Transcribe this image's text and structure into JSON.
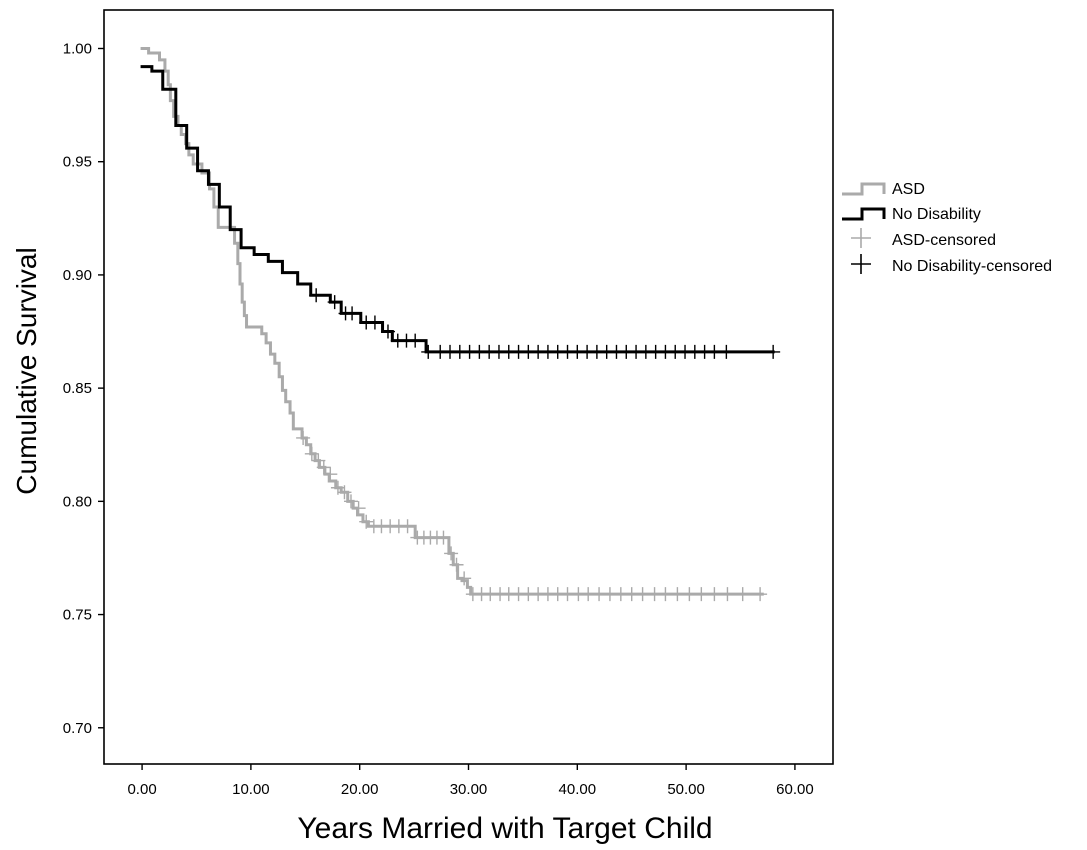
{
  "chart_data": {
    "type": "line",
    "subtype": "kaplan-meier step",
    "title": "",
    "xlabel": "Years Married with Target Child",
    "ylabel": "Cumulative Survival",
    "xlim": [
      -3.5,
      63.5
    ],
    "ylim": [
      0.684,
      1.017
    ],
    "x_ticks": [
      0,
      10,
      20,
      30,
      40,
      50,
      60
    ],
    "x_tick_labels": [
      "0.00",
      "10.00",
      "20.00",
      "30.00",
      "40.00",
      "50.00",
      "60.00"
    ],
    "y_ticks": [
      0.7,
      0.75,
      0.8,
      0.85,
      0.9,
      0.95,
      1.0
    ],
    "y_tick_labels": [
      "0.70",
      "0.75",
      "0.80",
      "0.85",
      "0.90",
      "0.95",
      "1.00"
    ],
    "grid": false,
    "legend_position": "right",
    "legend": [
      "ASD",
      "No Disability",
      "ASD-censored",
      "No Disability-censored"
    ],
    "colors": {
      "ASD": "#aaaaaa",
      "No Disability": "#000000"
    },
    "series": [
      {
        "name": "ASD",
        "steps": [
          [
            0,
            1.0
          ],
          [
            0.5,
            1.0
          ],
          [
            0.6,
            0.998
          ],
          [
            1.5,
            0.998
          ],
          [
            1.6,
            0.995
          ],
          [
            2.0,
            0.995
          ],
          [
            2.1,
            0.99
          ],
          [
            2.4,
            0.984
          ],
          [
            2.6,
            0.977
          ],
          [
            2.9,
            0.97
          ],
          [
            3.3,
            0.966
          ],
          [
            3.6,
            0.962
          ],
          [
            4.0,
            0.958
          ],
          [
            4.3,
            0.953
          ],
          [
            4.7,
            0.949
          ],
          [
            5.5,
            0.945
          ],
          [
            6.2,
            0.938
          ],
          [
            6.6,
            0.93
          ],
          [
            7.0,
            0.921
          ],
          [
            8.3,
            0.921
          ],
          [
            8.5,
            0.914
          ],
          [
            8.8,
            0.905
          ],
          [
            9.0,
            0.896
          ],
          [
            9.2,
            0.888
          ],
          [
            9.4,
            0.882
          ],
          [
            9.6,
            0.877
          ],
          [
            11.0,
            0.874
          ],
          [
            11.4,
            0.87
          ],
          [
            11.8,
            0.865
          ],
          [
            12.2,
            0.861
          ],
          [
            12.6,
            0.855
          ],
          [
            12.9,
            0.849
          ],
          [
            13.2,
            0.844
          ],
          [
            13.6,
            0.839
          ],
          [
            13.9,
            0.832
          ],
          [
            14.7,
            0.828
          ],
          [
            15.1,
            0.825
          ],
          [
            15.5,
            0.821
          ],
          [
            15.9,
            0.818
          ],
          [
            16.3,
            0.815
          ],
          [
            16.8,
            0.812
          ],
          [
            17.2,
            0.809
          ],
          [
            17.8,
            0.806
          ],
          [
            18.3,
            0.804
          ],
          [
            18.9,
            0.8
          ],
          [
            19.4,
            0.797
          ],
          [
            19.8,
            0.794
          ],
          [
            20.3,
            0.791
          ],
          [
            20.8,
            0.789
          ],
          [
            25.0,
            0.789
          ],
          [
            25.1,
            0.784
          ],
          [
            28.1,
            0.784
          ],
          [
            28.2,
            0.777
          ],
          [
            28.6,
            0.772
          ],
          [
            29.0,
            0.766
          ],
          [
            29.4,
            0.765
          ],
          [
            29.9,
            0.762
          ],
          [
            30.2,
            0.759
          ],
          [
            57.0,
            0.759
          ]
        ],
        "censored": [
          [
            14.8,
            0.828
          ],
          [
            15.6,
            0.821
          ],
          [
            16.2,
            0.818
          ],
          [
            16.7,
            0.815
          ],
          [
            17.3,
            0.812
          ],
          [
            18.0,
            0.806
          ],
          [
            18.6,
            0.804
          ],
          [
            19.2,
            0.8
          ],
          [
            19.9,
            0.797
          ],
          [
            20.6,
            0.791
          ],
          [
            21.3,
            0.789
          ],
          [
            22.0,
            0.789
          ],
          [
            22.8,
            0.789
          ],
          [
            23.6,
            0.789
          ],
          [
            24.4,
            0.789
          ],
          [
            25.3,
            0.784
          ],
          [
            25.9,
            0.784
          ],
          [
            26.5,
            0.784
          ],
          [
            27.1,
            0.784
          ],
          [
            27.7,
            0.784
          ],
          [
            28.4,
            0.777
          ],
          [
            28.9,
            0.772
          ],
          [
            29.6,
            0.766
          ],
          [
            30.4,
            0.759
          ],
          [
            31.2,
            0.759
          ],
          [
            32.0,
            0.759
          ],
          [
            32.9,
            0.759
          ],
          [
            33.7,
            0.759
          ],
          [
            34.6,
            0.759
          ],
          [
            35.5,
            0.759
          ],
          [
            36.4,
            0.759
          ],
          [
            37.3,
            0.759
          ],
          [
            38.2,
            0.759
          ],
          [
            39.1,
            0.759
          ],
          [
            40.1,
            0.759
          ],
          [
            41.0,
            0.759
          ],
          [
            42.0,
            0.759
          ],
          [
            43.0,
            0.759
          ],
          [
            44.0,
            0.759
          ],
          [
            45.0,
            0.759
          ],
          [
            46.0,
            0.759
          ],
          [
            47.1,
            0.759
          ],
          [
            48.1,
            0.759
          ],
          [
            49.2,
            0.759
          ],
          [
            50.3,
            0.759
          ],
          [
            51.4,
            0.759
          ],
          [
            52.6,
            0.759
          ],
          [
            53.8,
            0.759
          ],
          [
            55.2,
            0.759
          ],
          [
            56.8,
            0.759
          ]
        ]
      },
      {
        "name": "No Disability",
        "steps": [
          [
            0,
            0.992
          ],
          [
            0.8,
            0.992
          ],
          [
            0.9,
            0.99
          ],
          [
            1.8,
            0.99
          ],
          [
            1.9,
            0.982
          ],
          [
            3.0,
            0.982
          ],
          [
            3.1,
            0.966
          ],
          [
            4.0,
            0.966
          ],
          [
            4.1,
            0.956
          ],
          [
            5.0,
            0.956
          ],
          [
            5.1,
            0.946
          ],
          [
            6.0,
            0.946
          ],
          [
            6.1,
            0.94
          ],
          [
            7.0,
            0.94
          ],
          [
            7.1,
            0.93
          ],
          [
            8.0,
            0.93
          ],
          [
            8.1,
            0.92
          ],
          [
            9.0,
            0.92
          ],
          [
            9.1,
            0.912
          ],
          [
            10.2,
            0.912
          ],
          [
            10.3,
            0.909
          ],
          [
            11.5,
            0.909
          ],
          [
            11.6,
            0.906
          ],
          [
            12.8,
            0.906
          ],
          [
            12.9,
            0.901
          ],
          [
            14.2,
            0.901
          ],
          [
            14.3,
            0.896
          ],
          [
            15.4,
            0.896
          ],
          [
            15.5,
            0.891
          ],
          [
            17.2,
            0.891
          ],
          [
            17.3,
            0.888
          ],
          [
            18.2,
            0.888
          ],
          [
            18.3,
            0.883
          ],
          [
            20.0,
            0.883
          ],
          [
            20.1,
            0.879
          ],
          [
            22.0,
            0.879
          ],
          [
            22.1,
            0.875
          ],
          [
            22.9,
            0.875
          ],
          [
            23.0,
            0.871
          ],
          [
            26.0,
            0.871
          ],
          [
            26.1,
            0.866
          ],
          [
            58.0,
            0.866
          ]
        ],
        "censored": [
          [
            16.0,
            0.891
          ],
          [
            17.7,
            0.888
          ],
          [
            18.7,
            0.883
          ],
          [
            19.3,
            0.883
          ],
          [
            20.6,
            0.879
          ],
          [
            21.4,
            0.879
          ],
          [
            22.6,
            0.875
          ],
          [
            23.5,
            0.871
          ],
          [
            24.3,
            0.871
          ],
          [
            25.1,
            0.871
          ],
          [
            26.3,
            0.866
          ],
          [
            27.4,
            0.866
          ],
          [
            28.3,
            0.866
          ],
          [
            29.2,
            0.866
          ],
          [
            30.1,
            0.866
          ],
          [
            31.0,
            0.866
          ],
          [
            31.9,
            0.866
          ],
          [
            32.8,
            0.866
          ],
          [
            33.7,
            0.866
          ],
          [
            34.6,
            0.866
          ],
          [
            35.5,
            0.866
          ],
          [
            36.4,
            0.866
          ],
          [
            37.3,
            0.866
          ],
          [
            38.2,
            0.866
          ],
          [
            39.1,
            0.866
          ],
          [
            40.0,
            0.866
          ],
          [
            40.9,
            0.866
          ],
          [
            41.8,
            0.866
          ],
          [
            42.7,
            0.866
          ],
          [
            43.6,
            0.866
          ],
          [
            44.5,
            0.866
          ],
          [
            45.4,
            0.866
          ],
          [
            46.3,
            0.866
          ],
          [
            47.2,
            0.866
          ],
          [
            48.1,
            0.866
          ],
          [
            49.0,
            0.866
          ],
          [
            49.9,
            0.866
          ],
          [
            50.8,
            0.866
          ],
          [
            51.7,
            0.866
          ],
          [
            52.6,
            0.866
          ],
          [
            53.7,
            0.866
          ],
          [
            58.0,
            0.866
          ]
        ]
      }
    ]
  }
}
